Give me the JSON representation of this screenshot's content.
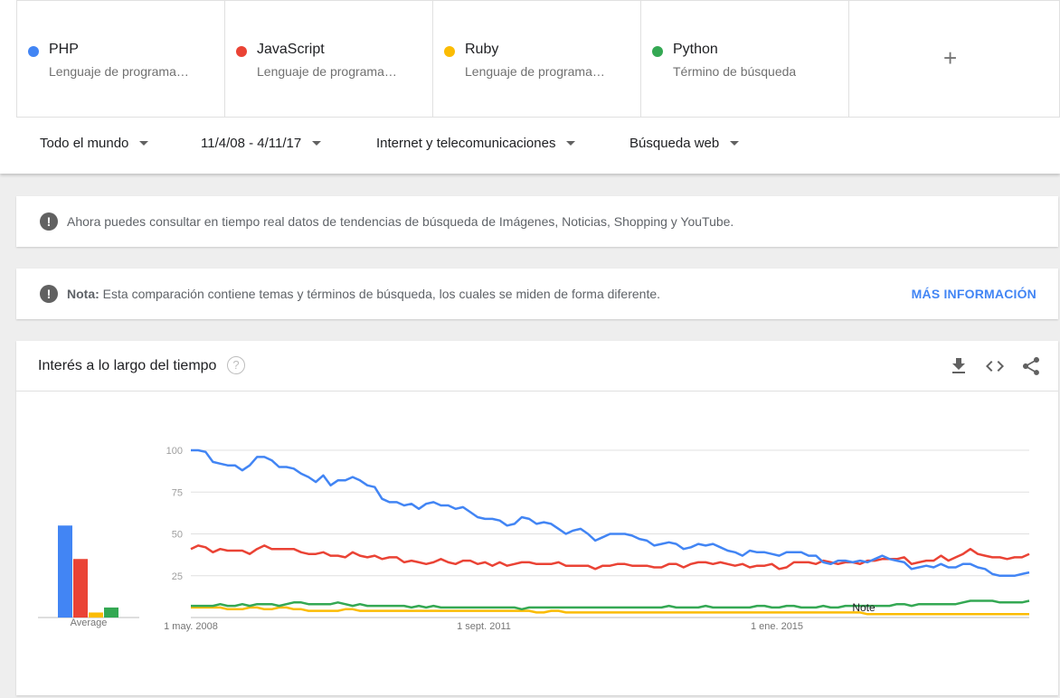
{
  "terms": [
    {
      "name": "PHP",
      "type": "Lenguaje de programa…",
      "color": "#4285f4"
    },
    {
      "name": "JavaScript",
      "type": "Lenguaje de programa…",
      "color": "#ea4335"
    },
    {
      "name": "Ruby",
      "type": "Lenguaje de programa…",
      "color": "#fbbc04"
    },
    {
      "name": "Python",
      "type": "Término de búsqueda",
      "color": "#34a853"
    }
  ],
  "add_term": "+",
  "filters": {
    "region": "Todo el mundo",
    "date_range": "11/4/08 - 4/11/17",
    "category": "Internet y telecomunicaciones",
    "search_type": "Búsqueda web"
  },
  "banner1": {
    "text": "Ahora puedes consultar en tiempo real datos de tendencias de búsqueda de Imágenes, Noticias, Shopping y YouTube."
  },
  "banner2": {
    "label": "Nota:",
    "text": "Esta comparación contiene temas y términos de búsqueda, los cuales se miden de forma diferente.",
    "link": "MÁS INFORMACIÓN"
  },
  "chart": {
    "title": "Interés a lo largo del tiempo",
    "help": "?",
    "average_label": "Average",
    "note_label": "Note"
  },
  "chart_data": {
    "type": "line",
    "ylim": [
      0,
      100
    ],
    "yticks": [
      100,
      75,
      50,
      25
    ],
    "xtick_labels": [
      "1 may. 2008",
      "1 sept. 2011",
      "1 ene. 2015"
    ],
    "grid": true,
    "averages": {
      "PHP": 55,
      "JavaScript": 35,
      "Ruby": 3,
      "Python": 6
    },
    "series": [
      {
        "name": "PHP",
        "color": "#4285f4",
        "values": [
          100,
          100,
          99,
          93,
          92,
          91,
          91,
          88,
          91,
          96,
          96,
          94,
          90,
          90,
          89,
          86,
          84,
          81,
          85,
          79,
          82,
          82,
          84,
          82,
          79,
          78,
          71,
          69,
          69,
          67,
          68,
          65,
          68,
          69,
          67,
          67,
          65,
          66,
          63,
          60,
          59,
          59,
          58,
          55,
          56,
          60,
          59,
          56,
          57,
          56,
          53,
          50,
          52,
          53,
          50,
          46,
          48,
          50,
          50,
          50,
          49,
          47,
          46,
          43,
          44,
          45,
          44,
          41,
          42,
          44,
          43,
          44,
          42,
          40,
          39,
          37,
          40,
          39,
          39,
          38,
          37,
          39,
          39,
          39,
          37,
          37,
          33,
          32,
          34,
          34,
          33,
          34,
          33,
          35,
          37,
          35,
          34,
          33,
          29,
          30,
          31,
          30,
          32,
          30,
          30,
          32,
          32,
          30,
          29,
          26,
          25,
          25,
          25,
          26,
          27
        ]
      },
      {
        "name": "JavaScript",
        "color": "#ea4335",
        "values": [
          41,
          43,
          42,
          39,
          41,
          40,
          40,
          40,
          38,
          41,
          43,
          41,
          41,
          41,
          41,
          39,
          38,
          38,
          39,
          37,
          37,
          36,
          39,
          37,
          36,
          37,
          35,
          36,
          36,
          33,
          34,
          33,
          32,
          33,
          35,
          33,
          32,
          34,
          34,
          32,
          33,
          31,
          33,
          31,
          32,
          33,
          33,
          32,
          32,
          32,
          33,
          31,
          31,
          31,
          31,
          29,
          31,
          31,
          32,
          32,
          31,
          31,
          31,
          30,
          30,
          32,
          32,
          30,
          32,
          33,
          33,
          32,
          33,
          32,
          31,
          32,
          30,
          31,
          31,
          32,
          29,
          30,
          33,
          33,
          33,
          32,
          34,
          33,
          32,
          33,
          33,
          32,
          34,
          34,
          35,
          35,
          35,
          36,
          32,
          33,
          34,
          34,
          37,
          34,
          36,
          38,
          41,
          38,
          37,
          36,
          36,
          35,
          36,
          36,
          38
        ]
      },
      {
        "name": "Ruby",
        "color": "#fbbc04",
        "values": [
          6,
          6,
          6,
          6,
          6,
          5,
          5,
          5,
          6,
          6,
          5,
          5,
          6,
          6,
          5,
          5,
          4,
          4,
          4,
          4,
          4,
          5,
          5,
          4,
          4,
          4,
          4,
          4,
          4,
          4,
          4,
          4,
          4,
          4,
          4,
          4,
          4,
          4,
          4,
          4,
          4,
          4,
          4,
          4,
          4,
          4,
          4,
          3,
          3,
          4,
          4,
          3,
          3,
          3,
          3,
          3,
          3,
          3,
          3,
          3,
          3,
          3,
          3,
          3,
          3,
          3,
          3,
          3,
          3,
          3,
          3,
          3,
          3,
          3,
          3,
          3,
          3,
          3,
          3,
          3,
          3,
          3,
          3,
          3,
          3,
          3,
          3,
          3,
          3,
          3,
          3,
          3,
          2,
          2,
          2,
          2,
          2,
          2,
          2,
          2,
          2,
          2,
          2,
          2,
          2,
          2,
          2,
          2,
          2,
          2,
          2,
          2,
          2,
          2,
          2
        ]
      },
      {
        "name": "Python",
        "color": "#34a853",
        "values": [
          7,
          7,
          7,
          7,
          8,
          7,
          7,
          8,
          7,
          8,
          8,
          8,
          7,
          8,
          9,
          9,
          8,
          8,
          8,
          8,
          9,
          8,
          7,
          8,
          7,
          7,
          7,
          7,
          7,
          7,
          6,
          7,
          6,
          7,
          6,
          6,
          6,
          6,
          6,
          6,
          6,
          6,
          6,
          6,
          6,
          5,
          6,
          6,
          6,
          6,
          6,
          6,
          6,
          6,
          6,
          6,
          6,
          6,
          6,
          6,
          6,
          6,
          6,
          6,
          6,
          7,
          6,
          6,
          6,
          6,
          7,
          6,
          6,
          6,
          6,
          6,
          6,
          7,
          7,
          6,
          6,
          7,
          7,
          6,
          6,
          6,
          7,
          6,
          6,
          7,
          7,
          7,
          7,
          7,
          7,
          7,
          8,
          8,
          7,
          8,
          8,
          8,
          8,
          8,
          8,
          9,
          10,
          10,
          10,
          10,
          9,
          9,
          9,
          9,
          10
        ]
      }
    ]
  }
}
